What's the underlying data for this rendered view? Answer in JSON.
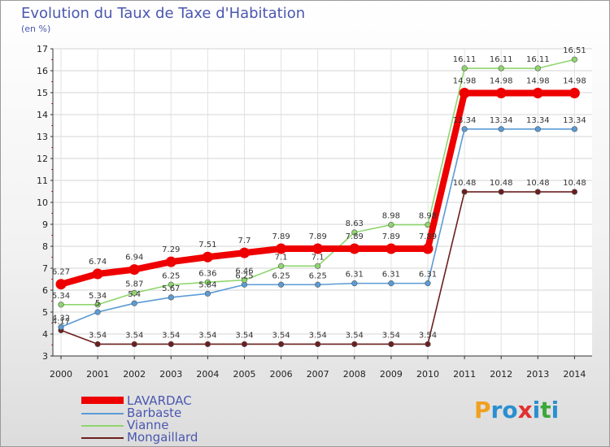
{
  "title": "Evolution du Taux de Taxe d'Habitation",
  "subtitle": "(en %)",
  "logo": {
    "text": "Proxiti",
    "letters": [
      "P",
      "r",
      "o",
      "x",
      "i",
      "t",
      "i"
    ],
    "colors": [
      "#f0a020",
      "#2a8fd0",
      "#2a8fd0",
      "#e23030",
      "#2a8fd0",
      "#3aa83a",
      "#2a8fd0"
    ]
  },
  "chart_data": {
    "type": "line",
    "x": [
      "2000",
      "2001",
      "2002",
      "2003",
      "2004",
      "2005",
      "2006",
      "2007",
      "2008",
      "2009",
      "2010",
      "2011",
      "2012",
      "2013",
      "2014"
    ],
    "ylim": [
      3,
      17
    ],
    "yticks": [
      3,
      4,
      5,
      6,
      7,
      8,
      9,
      10,
      11,
      12,
      13,
      14,
      15,
      16,
      17
    ],
    "grid": true,
    "legend_position": "bottom-left",
    "series": [
      {
        "name": "LAVARDAC",
        "color": "#ee0000",
        "highlight": true,
        "values": [
          6.27,
          6.74,
          6.94,
          7.29,
          7.51,
          7.7,
          7.89,
          7.89,
          7.89,
          7.89,
          7.89,
          14.98,
          14.98,
          14.98,
          14.98
        ],
        "labels": [
          "6.27",
          "6.74",
          "6.94",
          "7.29",
          "7.51",
          "7.7",
          "7.89",
          "7.89",
          "7.89",
          "7.89",
          "7.89",
          "14.98",
          "14.98",
          "14.98",
          "14.98"
        ]
      },
      {
        "name": "Barbaste",
        "color": "#5b9bd5",
        "values": [
          4.32,
          5.0,
          5.4,
          5.67,
          5.84,
          6.25,
          6.25,
          6.25,
          6.31,
          6.31,
          6.31,
          13.34,
          13.34,
          13.34,
          13.34
        ],
        "labels": [
          "4.32",
          "5",
          "5.4",
          "5.67",
          "5.84",
          "6.25",
          "6.25",
          "6.25",
          "6.31",
          "6.31",
          "6.31",
          "13.34",
          "13.34",
          "13.34",
          "13.34"
        ]
      },
      {
        "name": "Vianne",
        "color": "#8fd66e",
        "values": [
          5.34,
          5.34,
          5.87,
          6.25,
          6.36,
          6.46,
          7.1,
          7.1,
          8.63,
          8.98,
          8.98,
          16.11,
          16.11,
          16.11,
          16.51
        ],
        "labels": [
          "5.34",
          "5.34",
          "5.87",
          "6.25",
          "6.36",
          "6.46",
          "7.1",
          "7.1",
          "8.63",
          "8.98",
          "8.98",
          "16.11",
          "16.11",
          "16.11",
          "16.51"
        ]
      },
      {
        "name": "Mongaillard",
        "color": "#6b1f1f",
        "values": [
          4.17,
          3.54,
          3.54,
          3.54,
          3.54,
          3.54,
          3.54,
          3.54,
          3.54,
          3.54,
          3.54,
          10.48,
          10.48,
          10.48,
          10.48
        ],
        "labels": [
          "4.17",
          "3.54",
          "3.54",
          "3.54",
          "3.54",
          "3.54",
          "3.54",
          "3.54",
          "3.54",
          "3.54",
          "3.54",
          "10.48",
          "10.48",
          "10.48",
          "10.48"
        ]
      }
    ]
  }
}
